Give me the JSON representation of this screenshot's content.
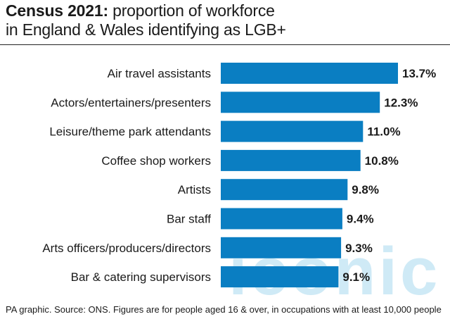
{
  "title_bold": "Census 2021:",
  "title_rest_line1": " proportion of workforce",
  "title_line2": "in England & Wales identifying as LGB+",
  "watermark": "iconic",
  "source": "PA graphic. Source: ONS. Figures are for people aged 16 & over, in occupations with at least 10,000 people",
  "colors": {
    "bar": "#0a7ec2",
    "text": "#1a1a1a"
  },
  "chart_data": {
    "type": "bar",
    "orientation": "horizontal",
    "categories": [
      "Air travel assistants",
      "Actors/entertainers/presenters",
      "Leisure/theme park attendants",
      "Coffee shop workers",
      "Artists",
      "Bar staff",
      "Arts officers/producers/directors",
      "Bar & catering supervisors"
    ],
    "values": [
      13.7,
      12.3,
      11.0,
      10.8,
      9.8,
      9.4,
      9.3,
      9.1
    ],
    "value_labels": [
      "13.7%",
      "12.3%",
      "11.0%",
      "10.8%",
      "9.8%",
      "9.4%",
      "9.3%",
      "9.1%"
    ],
    "xlim": [
      0,
      13.7
    ],
    "grid": false,
    "legend": "none"
  }
}
